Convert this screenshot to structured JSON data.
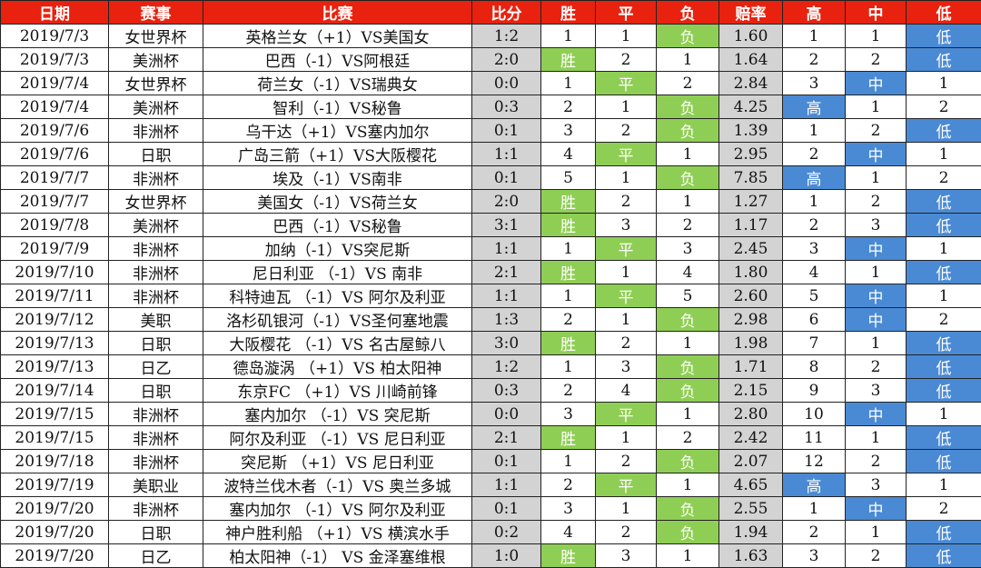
{
  "headers": [
    "日期",
    "赛事",
    "比赛",
    "比分",
    "胜",
    "平",
    "负",
    "赔率",
    "高",
    "中",
    "低"
  ],
  "rows": [
    {
      "date": "2019/7/3",
      "league": "女世界杯",
      "match": "英格兰女（+1）VS美国女",
      "score": "1:2",
      "win": "1",
      "draw": "1",
      "lose": "负",
      "odds": "1.60",
      "high": "1",
      "mid": "1",
      "low": "低",
      "result": "lose",
      "level": "low"
    },
    {
      "date": "2019/7/3",
      "league": "美洲杯",
      "match": "巴西（-1）VS阿根廷",
      "score": "2:0",
      "win": "胜",
      "draw": "2",
      "lose": "1",
      "odds": "1.64",
      "high": "2",
      "mid": "2",
      "low": "低",
      "result": "win",
      "level": "low"
    },
    {
      "date": "2019/7/4",
      "league": "女世界杯",
      "match": "荷兰女（-1）VS瑞典女",
      "score": "0:0",
      "win": "1",
      "draw": "平",
      "lose": "2",
      "odds": "2.84",
      "high": "3",
      "mid": "中",
      "low": "1",
      "result": "draw",
      "level": "mid"
    },
    {
      "date": "2019/7/4",
      "league": "美洲杯",
      "match": "智利（-1）VS秘鲁",
      "score": "0:3",
      "win": "2",
      "draw": "1",
      "lose": "负",
      "odds": "4.25",
      "high": "高",
      "mid": "1",
      "low": "2",
      "result": "lose",
      "level": "high"
    },
    {
      "date": "2019/7/6",
      "league": "非洲杯",
      "match": "乌干达（+1）VS塞内加尔",
      "score": "0:1",
      "win": "3",
      "draw": "2",
      "lose": "负",
      "odds": "1.39",
      "high": "1",
      "mid": "2",
      "low": "低",
      "result": "lose",
      "level": "low"
    },
    {
      "date": "2019/7/6",
      "league": "日职",
      "match": "广岛三箭（+1）VS大阪樱花",
      "score": "1:1",
      "win": "4",
      "draw": "平",
      "lose": "1",
      "odds": "2.95",
      "high": "2",
      "mid": "中",
      "low": "1",
      "result": "draw",
      "level": "mid"
    },
    {
      "date": "2019/7/7",
      "league": "非洲杯",
      "match": "埃及（-1）VS南非",
      "score": "0:1",
      "win": "5",
      "draw": "1",
      "lose": "负",
      "odds": "7.85",
      "high": "高",
      "mid": "1",
      "low": "2",
      "result": "lose",
      "level": "high"
    },
    {
      "date": "2019/7/7",
      "league": "女世界杯",
      "match": "美国女（-1）VS荷兰女",
      "score": "2:0",
      "win": "胜",
      "draw": "2",
      "lose": "1",
      "odds": "1.27",
      "high": "1",
      "mid": "2",
      "low": "低",
      "result": "win",
      "level": "low"
    },
    {
      "date": "2019/7/8",
      "league": "美洲杯",
      "match": "巴西（-1）VS秘鲁",
      "score": "3:1",
      "win": "胜",
      "draw": "3",
      "lose": "2",
      "odds": "1.17",
      "high": "2",
      "mid": "3",
      "low": "低",
      "result": "win",
      "level": "low"
    },
    {
      "date": "2019/7/9",
      "league": "非洲杯",
      "match": "加纳（-1）VS突尼斯",
      "score": "1:1",
      "win": "1",
      "draw": "平",
      "lose": "3",
      "odds": "2.45",
      "high": "3",
      "mid": "中",
      "low": "1",
      "result": "draw",
      "level": "mid"
    },
    {
      "date": "2019/7/10",
      "league": "非洲杯",
      "match": "尼日利亚  （-1）VS 南非",
      "score": "2:1",
      "win": "胜",
      "draw": "1",
      "lose": "4",
      "odds": "1.80",
      "high": "4",
      "mid": "1",
      "low": "低",
      "result": "win",
      "level": "low"
    },
    {
      "date": "2019/7/11",
      "league": "非洲杯",
      "match": "科特迪瓦  （-1）VS 阿尔及利亚",
      "score": "1:1",
      "win": "1",
      "draw": "平",
      "lose": "5",
      "odds": "2.60",
      "high": "5",
      "mid": "中",
      "low": "1",
      "result": "draw",
      "level": "mid"
    },
    {
      "date": "2019/7/12",
      "league": "美职",
      "match": "洛杉矶银河（-1）VS圣何塞地震",
      "score": "1:3",
      "win": "2",
      "draw": "1",
      "lose": "负",
      "odds": "2.98",
      "high": "6",
      "mid": "中",
      "low": "2",
      "result": "lose",
      "level": "mid"
    },
    {
      "date": "2019/7/13",
      "league": "日职",
      "match": "大阪樱花  （-1）VS 名古屋鲸八",
      "score": "3:0",
      "win": "胜",
      "draw": "2",
      "lose": "1",
      "odds": "1.98",
      "high": "7",
      "mid": "1",
      "low": "低",
      "result": "win",
      "level": "low"
    },
    {
      "date": "2019/7/13",
      "league": "日乙",
      "match": "德岛漩涡  （+1）VS 柏太阳神",
      "score": "1:2",
      "win": "1",
      "draw": "3",
      "lose": "负",
      "odds": "1.71",
      "high": "8",
      "mid": "2",
      "low": "低",
      "result": "lose",
      "level": "low"
    },
    {
      "date": "2019/7/14",
      "league": "日职",
      "match": "东京FC  （+1）VS 川崎前锋",
      "score": "0:3",
      "win": "2",
      "draw": "4",
      "lose": "负",
      "odds": "2.15",
      "high": "9",
      "mid": "3",
      "low": "低",
      "result": "lose",
      "level": "low"
    },
    {
      "date": "2019/7/15",
      "league": "非洲杯",
      "match": "塞内加尔  （-1）VS 突尼斯",
      "score": "0:0",
      "win": "3",
      "draw": "平",
      "lose": "1",
      "odds": "2.80",
      "high": "10",
      "mid": "中",
      "low": "1",
      "result": "draw",
      "level": "mid"
    },
    {
      "date": "2019/7/15",
      "league": "非洲杯",
      "match": "阿尔及利亚  （-1）VS 尼日利亚",
      "score": "2:1",
      "win": "胜",
      "draw": "1",
      "lose": "2",
      "odds": "2.42",
      "high": "11",
      "mid": "1",
      "low": "低",
      "result": "win",
      "level": "low"
    },
    {
      "date": "2019/7/18",
      "league": "非洲杯",
      "match": "突尼斯  （+1）VS 尼日利亚",
      "score": "0:1",
      "win": "1",
      "draw": "2",
      "lose": "负",
      "odds": "2.07",
      "high": "12",
      "mid": "2",
      "low": "低",
      "result": "lose",
      "level": "low"
    },
    {
      "date": "2019/7/19",
      "league": "美职业",
      "match": "波特兰伐木者（-1）VS 奥兰多城",
      "score": "1:1",
      "win": "2",
      "draw": "平",
      "lose": "1",
      "odds": "4.65",
      "high": "高",
      "mid": "3",
      "low": "1",
      "result": "draw",
      "level": "high"
    },
    {
      "date": "2019/7/20",
      "league": "非洲杯",
      "match": "塞内加尔  （-1）VS 阿尔及利亚",
      "score": "0:1",
      "win": "3",
      "draw": "1",
      "lose": "负",
      "odds": "2.55",
      "high": "1",
      "mid": "中",
      "low": "2",
      "result": "lose",
      "level": "mid"
    },
    {
      "date": "2019/7/20",
      "league": "日职",
      "match": "神户胜利船  （+1）VS 横滨水手",
      "score": "0:2",
      "win": "4",
      "draw": "2",
      "lose": "负",
      "odds": "1.94",
      "high": "2",
      "mid": "1",
      "low": "低",
      "result": "lose",
      "level": "low"
    },
    {
      "date": "2019/7/20",
      "league": "日乙",
      "match": "柏太阳神（-1）  VS 金泽塞维根",
      "score": "1:0",
      "win": "胜",
      "draw": "3",
      "lose": "1",
      "odds": "1.63",
      "high": "3",
      "mid": "2",
      "low": "低",
      "result": "win",
      "level": "low"
    }
  ],
  "colors": {
    "header_bg": "#e8220f",
    "result_highlight": "#8fce54",
    "level_highlight": "#4a8ad4",
    "score_bg": "#d3d3d3"
  }
}
